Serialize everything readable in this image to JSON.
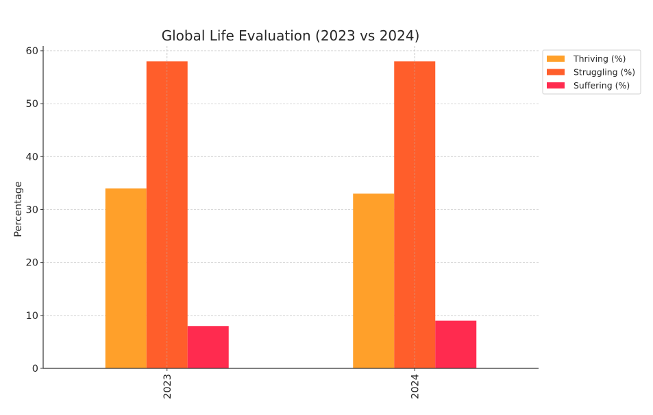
{
  "chart_data": {
    "type": "bar",
    "title": "Global Life Evaluation (2023 vs 2024)",
    "xlabel": "",
    "ylabel": "Percentage",
    "categories": [
      "2023",
      "2024"
    ],
    "series": [
      {
        "name": "Thriving (%)",
        "color": "#FFA02A",
        "values": [
          34,
          33
        ]
      },
      {
        "name": "Struggling (%)",
        "color": "#FF5E2B",
        "values": [
          58,
          58
        ]
      },
      {
        "name": "Suffering (%)",
        "color": "#FF2B4F",
        "values": [
          8,
          9
        ]
      }
    ],
    "ylim": [
      0,
      60.9
    ],
    "yticks": [
      "0",
      "10",
      "20",
      "30",
      "40",
      "50",
      "60"
    ],
    "grid": true,
    "legend_position": "outside-top-right"
  }
}
